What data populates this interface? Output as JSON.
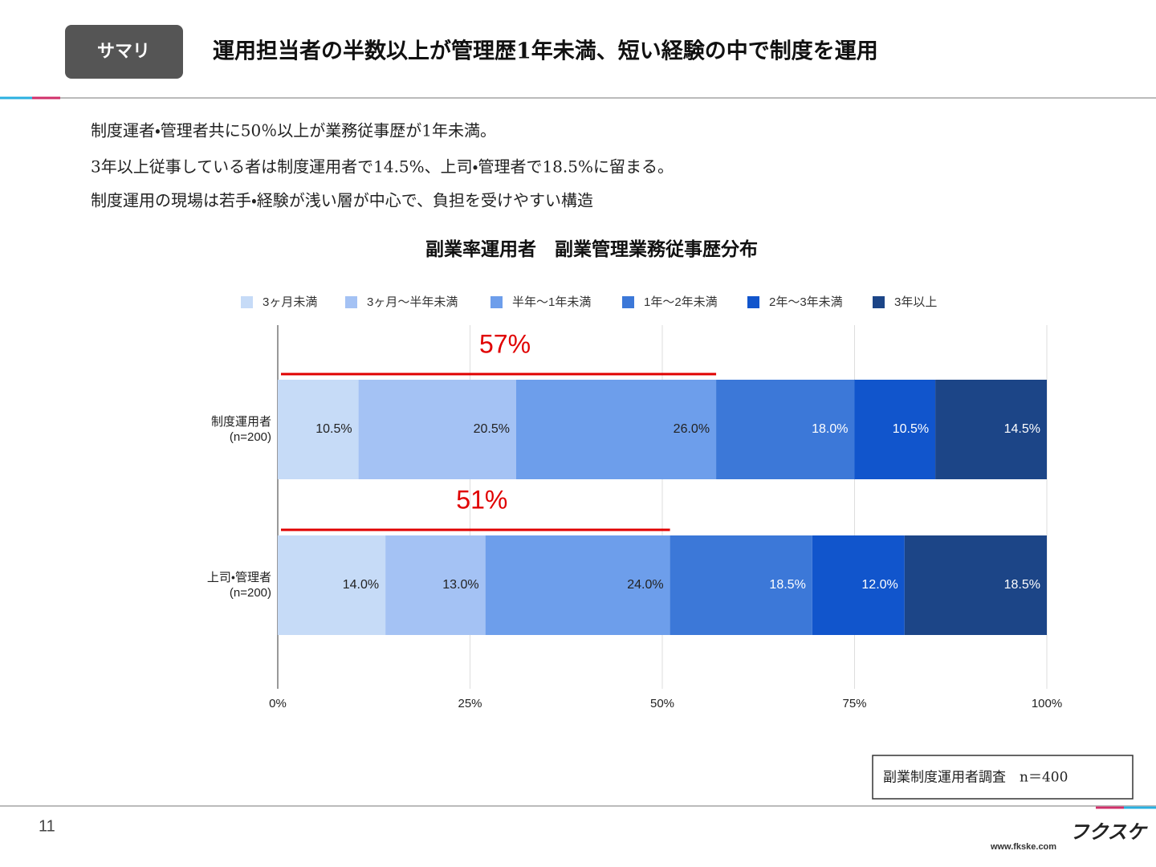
{
  "header": {
    "tag": "サマリ",
    "title": "運用担当者の半数以上が管理歴1年未満、短い経験の中で制度を運用"
  },
  "summary": [
    "制度運者・管理者共に50％以上が業務従事歴が1年未満。",
    "3年以上従事している者は制度運用者で14.5%、上司・管理者で18.5%に留まる。",
    "制度運用の現場は若手・経験が浅い層が中心で、負担を受けやすい構造"
  ],
  "chart_data": {
    "type": "stacked-bar-horizontal",
    "title": "副業率運用者　副業管理業務従事歴分布",
    "categories": [
      "制度運用者\n(n=200)",
      "上司・管理者\n(n=200)"
    ],
    "series": [
      {
        "name": "3ヶ月未満",
        "color": "#c6dbf7",
        "values": [
          10.5,
          14.0
        ],
        "value_labels": [
          "10.5%",
          "14.0%"
        ]
      },
      {
        "name": "3ヶ月〜半年未満",
        "color": "#a4c2f4",
        "values": [
          20.5,
          13.0
        ],
        "value_labels": [
          "20.5%",
          "13.0%"
        ]
      },
      {
        "name": "半年〜1年未満",
        "color": "#6d9eeb",
        "values": [
          26.0,
          24.0
        ],
        "value_labels": [
          "26.0%",
          "24.0%"
        ]
      },
      {
        "name": "1年〜2年未満",
        "color": "#3c78d8",
        "values": [
          18.0,
          18.5
        ],
        "value_labels": [
          "18.0%",
          "18.5%"
        ]
      },
      {
        "name": "2年〜3年未満",
        "color": "#1155cc",
        "values": [
          10.5,
          12.0
        ],
        "value_labels": [
          "10.5%",
          "12.0%"
        ]
      },
      {
        "name": "3年以上",
        "color": "#1c4587",
        "values": [
          14.5,
          18.5
        ],
        "value_labels": [
          "14.5%",
          "18.5%"
        ]
      }
    ],
    "xlim": [
      0,
      100
    ],
    "xticks": [
      {
        "value": 0,
        "label": "0%"
      },
      {
        "value": 25,
        "label": "25%"
      },
      {
        "value": 50,
        "label": "50%"
      },
      {
        "value": 75,
        "label": "75%"
      },
      {
        "value": 100,
        "label": "100%"
      }
    ],
    "grid": true,
    "legend": "top",
    "annotations": [
      {
        "category": 0,
        "value": 57,
        "label": "57%",
        "color": "#e00000"
      },
      {
        "category": 1,
        "value": 51,
        "label": "51%",
        "color": "#e00000"
      }
    ]
  },
  "source": "副業制度運用者調査　n＝400",
  "footer": {
    "page": 11,
    "logo": "フクスケ",
    "url": "www.fkske.com"
  }
}
